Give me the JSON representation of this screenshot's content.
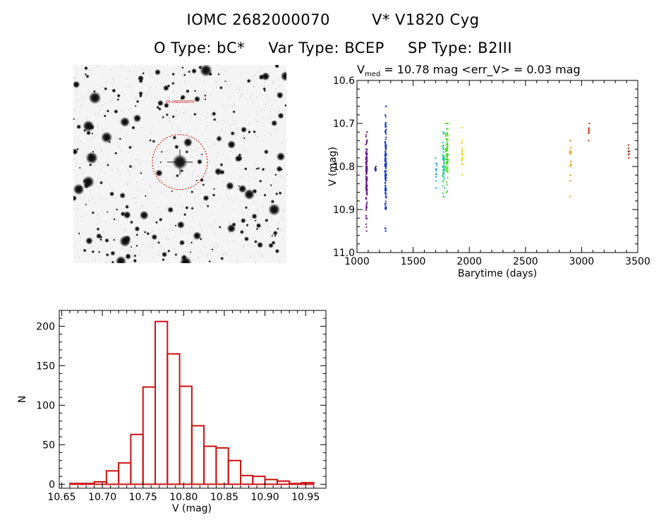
{
  "header": {
    "id_label": "IOMC 2682000070",
    "star_name": "V* V1820 Cyg",
    "otype": "O Type: bC*",
    "vartype": "Var Type: BCEP",
    "sptype": "SP Type: B2III"
  },
  "image_panel": {
    "kind": "grayscale sky field with circled target",
    "target_label": "OS 2682000070",
    "circle_color": "#cc0000"
  },
  "chart_data": [
    {
      "type": "scatter",
      "title": {
        "prefix": "V",
        "subscript": "med",
        "rest": " = 10.78 mag <err_V> = 0.03 mag"
      },
      "xlabel": "Barytime (days)",
      "ylabel": "V (mag)",
      "xlim": [
        1000,
        3500
      ],
      "ylim": [
        11.0,
        10.6
      ],
      "y_inverted": true,
      "xticks": [
        1000,
        1500,
        2000,
        2500,
        3000,
        3500
      ],
      "yticks": [
        10.6,
        10.7,
        10.8,
        10.9,
        11.0
      ],
      "ytick_labels": [
        "10.6",
        "10.7",
        "10.8",
        "10.9",
        "11.0"
      ],
      "grid": false,
      "legend": "none",
      "clusters": [
        {
          "x_center": 1085,
          "x_spread": 6,
          "y_min": 10.72,
          "y_max": 10.95,
          "y_center": 10.82,
          "n": 120,
          "color": "#6a1a8a"
        },
        {
          "x_center": 1165,
          "x_spread": 4,
          "y_min": 10.8,
          "y_max": 10.81,
          "y_center": 10.805,
          "n": 8,
          "color": "#2a2aa0"
        },
        {
          "x_center": 1255,
          "x_spread": 6,
          "y_min": 10.66,
          "y_max": 10.95,
          "y_center": 10.8,
          "n": 140,
          "color": "#1a3cc8"
        },
        {
          "x_center": 1705,
          "x_spread": 6,
          "y_min": 10.78,
          "y_max": 10.85,
          "y_center": 10.81,
          "n": 14,
          "color": "#1aa8e0"
        },
        {
          "x_center": 1770,
          "x_spread": 8,
          "y_min": 10.72,
          "y_max": 10.87,
          "y_center": 10.79,
          "n": 60,
          "color": "#1ad09a"
        },
        {
          "x_center": 1800,
          "x_spread": 10,
          "y_min": 10.7,
          "y_max": 10.86,
          "y_center": 10.77,
          "n": 70,
          "color": "#4ad81a"
        },
        {
          "x_center": 1935,
          "x_spread": 5,
          "y_min": 10.71,
          "y_max": 10.82,
          "y_center": 10.77,
          "n": 18,
          "color": "#e8d80a"
        },
        {
          "x_center": 2900,
          "x_spread": 5,
          "y_min": 10.74,
          "y_max": 10.87,
          "y_center": 10.79,
          "n": 16,
          "color": "#e89018"
        },
        {
          "x_center": 3065,
          "x_spread": 4,
          "y_min": 10.7,
          "y_max": 10.74,
          "y_center": 10.72,
          "n": 10,
          "color": "#d84010"
        },
        {
          "x_center": 3420,
          "x_spread": 4,
          "y_min": 10.75,
          "y_max": 10.78,
          "y_center": 10.765,
          "n": 8,
          "color": "#c82010"
        }
      ]
    },
    {
      "type": "bar",
      "subtype": "histogram",
      "xlabel": "V (mag)",
      "ylabel": "N",
      "xlim": [
        10.647,
        10.975
      ],
      "ylim": [
        -5,
        220
      ],
      "xticks": [
        10.65,
        10.7,
        10.75,
        10.8,
        10.85,
        10.9,
        10.95
      ],
      "xtick_labels": [
        "10.65",
        "10.70",
        "10.75",
        "10.80",
        "10.85",
        "10.90",
        "10.95"
      ],
      "yticks": [
        0,
        50,
        100,
        150,
        200
      ],
      "ytick_labels": [
        "0",
        "50",
        "100",
        "150",
        "200"
      ],
      "bin_edges": [
        10.66,
        10.675,
        10.69,
        10.705,
        10.72,
        10.735,
        10.75,
        10.765,
        10.78,
        10.795,
        10.81,
        10.825,
        10.84,
        10.855,
        10.87,
        10.885,
        10.9,
        10.915,
        10.93,
        10.945,
        10.96
      ],
      "counts": [
        1,
        1,
        3,
        17,
        27,
        63,
        123,
        206,
        165,
        124,
        74,
        48,
        46,
        30,
        11,
        10,
        6,
        4,
        1,
        2
      ],
      "bar_color": "#cc1111",
      "grid": false
    }
  ]
}
